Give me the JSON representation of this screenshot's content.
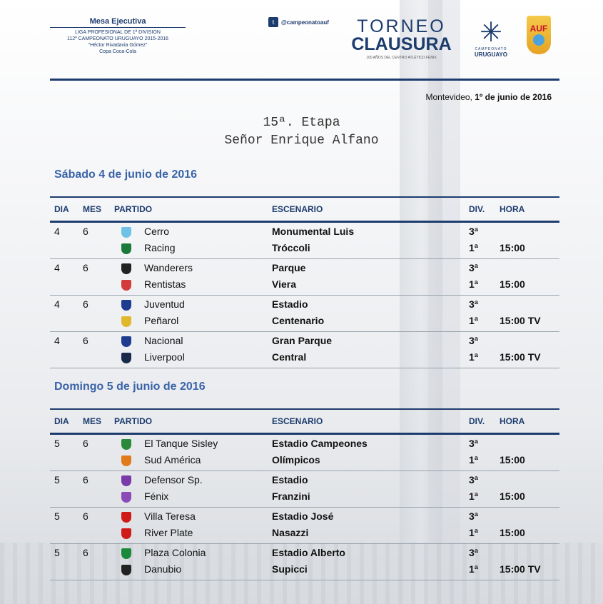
{
  "header": {
    "mesa": "Mesa Ejecutiva",
    "lines": [
      "LIGA PROFESIONAL DE 1ª DIVISION",
      "112º CAMPEONATO URUGUAYO 2015-2016",
      "\"Héctor Rivadavia Gómez\"",
      "Copa Coca-Cola"
    ],
    "twitter": "@campeonatoauf",
    "torneo_1": "TORNEO",
    "torneo_2": "CLAUSURA",
    "torneo_sub": "100 AÑOS DEL CENTRO ATLÉTICO FÉNIX",
    "cu_small": "CAMPEONATO",
    "cu_big": "URUGUAYO",
    "auf": "AUF"
  },
  "date_prefix": "Montevideo, ",
  "date_bold": "1º de junio de 2016",
  "etapa": "15ª. Etapa",
  "honor": "Señor Enrique Alfano",
  "columns": {
    "dia": "DIA",
    "mes": "MES",
    "partido": "PARTIDO",
    "escenario": "ESCENARIO",
    "div": "DIV.",
    "hora": "HORA"
  },
  "days": [
    {
      "title": "Sábado 4 de junio de 2016",
      "matches": [
        {
          "dia": "4",
          "mes": "6",
          "team1": "Cerro",
          "team2": "Racing",
          "venue1": "Monumental Luis",
          "venue2": "Tróccoli",
          "div1": "3ª",
          "div2": "1ª",
          "hora": "15:00",
          "crest1": "#6fc2e6",
          "crest2": "#1b7a3a"
        },
        {
          "dia": "4",
          "mes": "6",
          "team1": "Wanderers",
          "team2": "Rentistas",
          "venue1": "Parque",
          "venue2": "Viera",
          "div1": "3ª",
          "div2": "1ª",
          "hora": "15:00",
          "crest1": "#222222",
          "crest2": "#d33a3a"
        },
        {
          "dia": "4",
          "mes": "6",
          "team1": "Juventud",
          "team2": "Peñarol",
          "venue1": "Estadio",
          "venue2": "Centenario",
          "div1": "3ª",
          "div2": "1ª",
          "hora": "15:00 TV",
          "crest1": "#1d3c8e",
          "crest2": "#e0b82a"
        },
        {
          "dia": "4",
          "mes": "6",
          "team1": "Nacional",
          "team2": "Liverpool",
          "venue1": "Gran Parque",
          "venue2": "Central",
          "div1": "3ª",
          "div2": "1ª",
          "hora": "15:00 TV",
          "crest1": "#1d3c8e",
          "crest2": "#1a2a4a"
        }
      ]
    },
    {
      "title": "Domingo 5 de junio de 2016",
      "matches": [
        {
          "dia": "5",
          "mes": "6",
          "team1": "El Tanque Sisley",
          "team2": "Sud América",
          "venue1": "Estadio Campeones",
          "venue2": "Olímpicos",
          "div1": "3ª",
          "div2": "1ª",
          "hora": "15:00",
          "crest1": "#2a8a3a",
          "crest2": "#e07a1a"
        },
        {
          "dia": "5",
          "mes": "6",
          "team1": "Defensor Sp.",
          "team2": "Fénix",
          "venue1": "Estadio",
          "venue2": "Franzini",
          "div1": "3ª",
          "div2": "1ª",
          "hora": "15:00",
          "crest1": "#7a3aa8",
          "crest2": "#8a4ab8"
        },
        {
          "dia": "5",
          "mes": "6",
          "team1": "Villa Teresa",
          "team2": "River Plate",
          "venue1": "Estadio José",
          "venue2": "Nasazzi",
          "div1": "3ª",
          "div2": "1ª",
          "hora": "15:00",
          "crest1": "#d01a1a",
          "crest2": "#d01a1a"
        },
        {
          "dia": "5",
          "mes": "6",
          "team1": "Plaza Colonia",
          "team2": "Danubio",
          "venue1": "Estadio Alberto",
          "venue2": "Supicci",
          "div1": "3ª",
          "div2": "1ª",
          "hora": "15:00 TV",
          "crest1": "#1a8a3a",
          "crest2": "#222222"
        }
      ]
    }
  ]
}
